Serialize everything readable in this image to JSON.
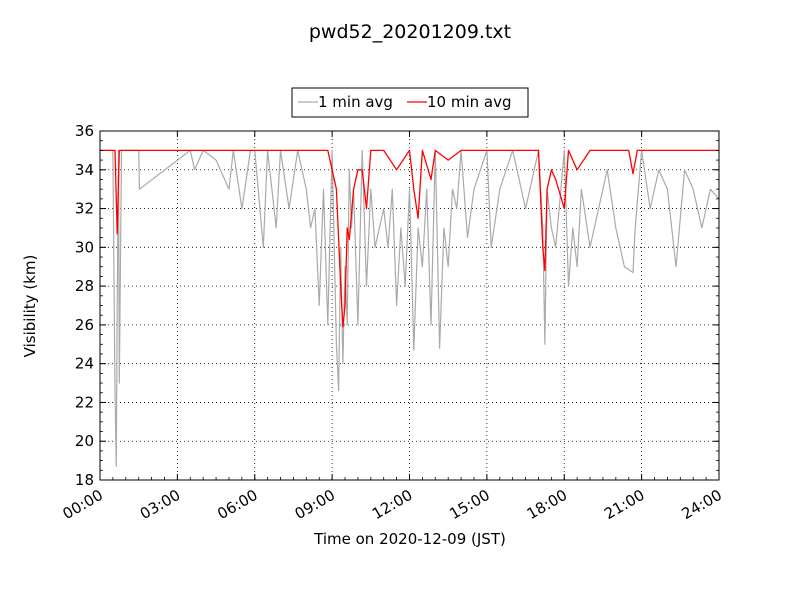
{
  "chart_data": {
    "type": "line",
    "title": "pwd52_20201209.txt",
    "xlabel": "Time on 2020-12-09 (JST)",
    "ylabel": "Visibility (km)",
    "xlim": [
      "00:00",
      "24:00"
    ],
    "ylim": [
      18,
      36
    ],
    "x_ticks": [
      "00:00",
      "03:00",
      "06:00",
      "09:00",
      "12:00",
      "15:00",
      "18:00",
      "21:00",
      "24:00"
    ],
    "y_ticks": [
      18,
      20,
      22,
      24,
      26,
      28,
      30,
      32,
      34,
      36
    ],
    "grid": true,
    "legend_position": "top-center",
    "series": [
      {
        "name": "1 min avg",
        "color": "#aaaaaa",
        "x": [
          "00:00",
          "00:30",
          "00:35",
          "00:38",
          "00:40",
          "00:43",
          "00:45",
          "00:50",
          "01:30",
          "01:32",
          "03:30",
          "03:40",
          "04:00",
          "04:30",
          "05:00",
          "05:10",
          "05:30",
          "05:50",
          "06:00",
          "06:20",
          "06:30",
          "06:50",
          "07:00",
          "07:20",
          "07:40",
          "08:00",
          "08:10",
          "08:20",
          "08:30",
          "08:40",
          "08:50",
          "09:00",
          "09:10",
          "09:15",
          "09:20",
          "09:25",
          "09:30",
          "09:35",
          "09:40",
          "09:45",
          "09:50",
          "10:00",
          "10:10",
          "10:20",
          "10:30",
          "10:40",
          "11:00",
          "11:10",
          "11:20",
          "11:30",
          "11:40",
          "11:50",
          "12:00",
          "12:10",
          "12:20",
          "12:30",
          "12:40",
          "12:50",
          "13:00",
          "13:10",
          "13:20",
          "13:30",
          "13:40",
          "13:50",
          "14:00",
          "14:15",
          "14:30",
          "15:00",
          "15:10",
          "15:30",
          "16:00",
          "16:30",
          "17:00",
          "17:10",
          "17:15",
          "17:20",
          "17:30",
          "17:40",
          "18:00",
          "18:10",
          "18:20",
          "18:30",
          "18:40",
          "19:00",
          "19:20",
          "19:40",
          "20:00",
          "20:20",
          "20:40",
          "20:45",
          "21:00",
          "21:20",
          "21:40",
          "22:00",
          "22:20",
          "22:40",
          "23:00",
          "23:20",
          "23:40",
          "24:00"
        ],
        "y": [
          35,
          35,
          22.5,
          18.7,
          27,
          35,
          23,
          35,
          35,
          33,
          35,
          34,
          35,
          34.5,
          33,
          35,
          32,
          35,
          35,
          30,
          35,
          31,
          35,
          32,
          35,
          33,
          31,
          32,
          27,
          33,
          26,
          35,
          25,
          22.6,
          30,
          24,
          29,
          26,
          34,
          31,
          33,
          26,
          35,
          28,
          33,
          30,
          32,
          30,
          33,
          27,
          31,
          28,
          33,
          24.7,
          31,
          29,
          33,
          26,
          35,
          24.8,
          31,
          29,
          33,
          32,
          35,
          30.5,
          33,
          35,
          30,
          33,
          35,
          32,
          35,
          31,
          25,
          33,
          31,
          30,
          35,
          28,
          31,
          29,
          33,
          30,
          32,
          34,
          31,
          29,
          28.7,
          31,
          35,
          32,
          34,
          33,
          29,
          34,
          33,
          31,
          33,
          32.5
        ]
      },
      {
        "name": "10 min avg",
        "color": "#ff0000",
        "x": [
          "00:00",
          "00:35",
          "00:40",
          "00:45",
          "00:50",
          "01:00",
          "08:50",
          "09:00",
          "09:10",
          "09:20",
          "09:25",
          "09:30",
          "09:35",
          "09:40",
          "09:50",
          "10:00",
          "10:10",
          "10:20",
          "10:30",
          "11:00",
          "11:30",
          "12:00",
          "12:10",
          "12:20",
          "12:30",
          "12:50",
          "13:00",
          "13:30",
          "14:00",
          "16:30",
          "17:00",
          "17:10",
          "17:15",
          "17:20",
          "17:30",
          "17:40",
          "18:00",
          "18:10",
          "18:30",
          "19:00",
          "20:30",
          "20:40",
          "20:50",
          "21:00",
          "24:00"
        ],
        "y": [
          35,
          35,
          30.7,
          35,
          35,
          35,
          35,
          34,
          33,
          28,
          25.9,
          27,
          31,
          30.4,
          33,
          34,
          34,
          32,
          35,
          35,
          34,
          35,
          33,
          31.5,
          35,
          33.5,
          35,
          34.5,
          35,
          35,
          35,
          30,
          28.8,
          33,
          34,
          33.5,
          32,
          35,
          34,
          35,
          35,
          33.8,
          35,
          35,
          35
        ]
      }
    ]
  }
}
